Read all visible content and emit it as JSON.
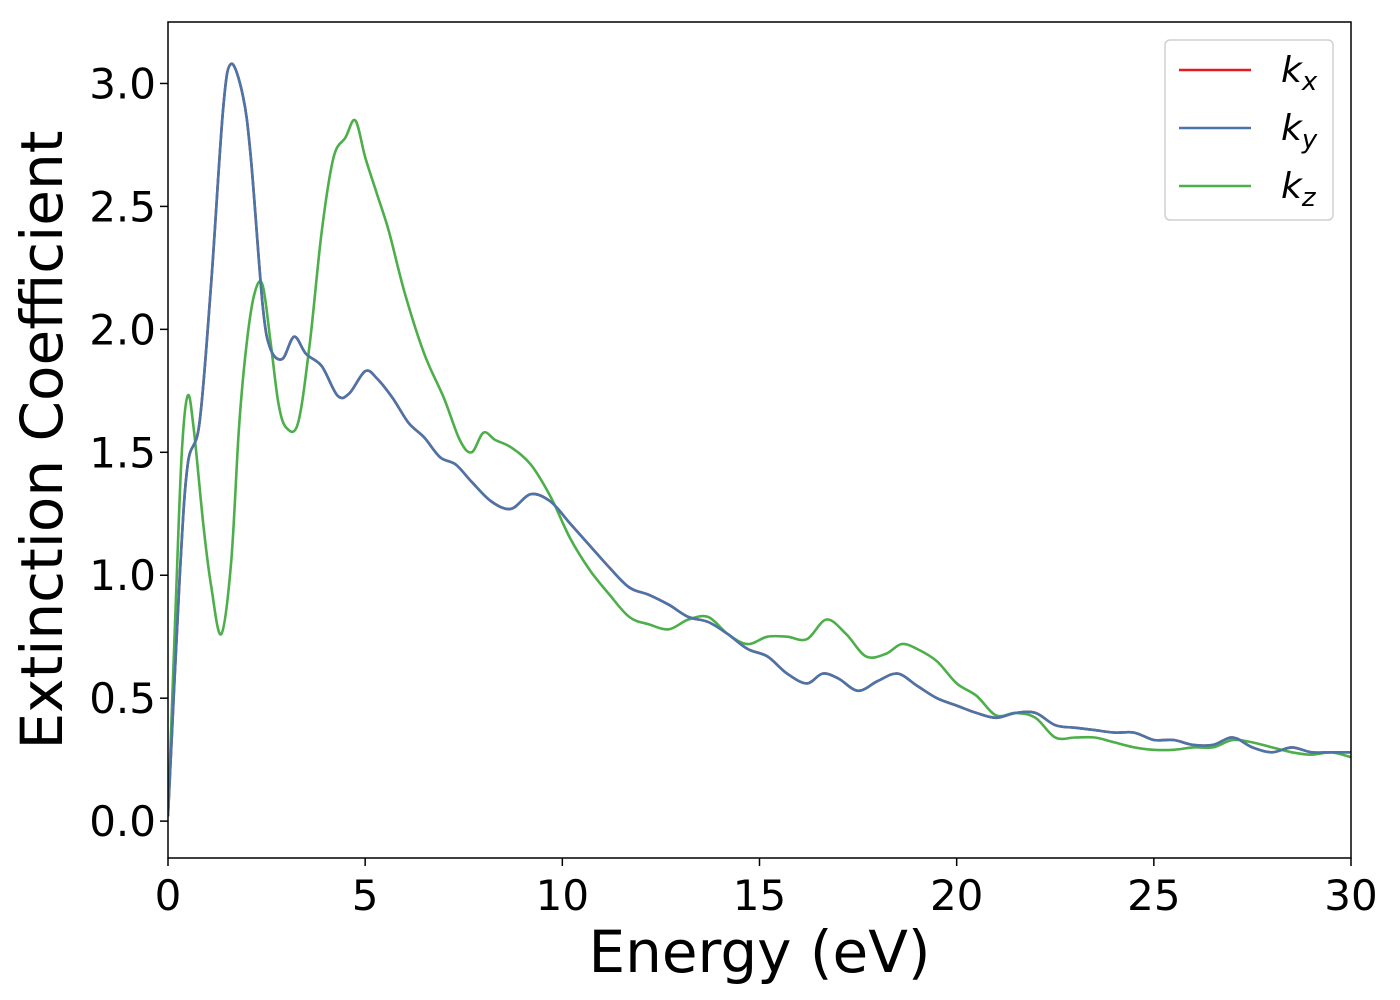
{
  "chart_data": {
    "type": "line",
    "title": "",
    "xlabel": "Energy (eV)",
    "ylabel": "Extinction Coefficient",
    "xlim": [
      0,
      30
    ],
    "ylim": [
      -0.15,
      3.25
    ],
    "xticks": [
      0,
      5,
      10,
      15,
      20,
      25,
      30
    ],
    "xtick_labels": [
      "0",
      "5",
      "10",
      "15",
      "20",
      "25",
      "30"
    ],
    "yticks": [
      0.0,
      0.5,
      1.0,
      1.5,
      2.0,
      2.5,
      3.0
    ],
    "ytick_labels": [
      "0.0",
      "0.5",
      "1.0",
      "1.5",
      "2.0",
      "2.5",
      "3.0"
    ],
    "grid": false,
    "legend_position": "top-right",
    "series": [
      {
        "name": "k_x",
        "label_main": "k",
        "label_sub": "x",
        "color": "#e41a1c",
        "x": [
          0,
          0.3,
          0.5,
          0.8,
          1.1,
          1.4,
          1.6,
          1.9,
          2.1,
          2.4,
          2.6,
          2.9,
          3.2,
          3.5,
          3.9,
          4.3,
          4.6,
          5.0,
          5.3,
          5.7,
          6.1,
          6.5,
          6.9,
          7.3,
          7.7,
          8.2,
          8.7,
          9.2,
          9.7,
          10.2,
          10.7,
          11.2,
          11.7,
          12.2,
          12.7,
          13.2,
          13.7,
          14.2,
          14.7,
          15.2,
          15.7,
          16.2,
          16.6,
          17.0,
          17.5,
          18.0,
          18.5,
          19.0,
          19.5,
          20.0,
          20.5,
          21.0,
          21.5,
          22.0,
          22.5,
          23.0,
          23.5,
          24.0,
          24.5,
          25.0,
          25.5,
          26.0,
          26.5,
          27.0,
          27.5,
          28.0,
          28.5,
          29.0,
          29.5,
          30.0
        ],
        "y": [
          0.02,
          1.0,
          1.45,
          1.62,
          2.2,
          2.9,
          3.08,
          2.95,
          2.7,
          2.1,
          1.92,
          1.88,
          1.97,
          1.9,
          1.85,
          1.73,
          1.74,
          1.83,
          1.8,
          1.72,
          1.62,
          1.56,
          1.48,
          1.45,
          1.38,
          1.3,
          1.27,
          1.33,
          1.3,
          1.21,
          1.12,
          1.03,
          0.95,
          0.92,
          0.88,
          0.83,
          0.81,
          0.76,
          0.7,
          0.67,
          0.6,
          0.56,
          0.6,
          0.58,
          0.53,
          0.57,
          0.6,
          0.55,
          0.5,
          0.47,
          0.44,
          0.42,
          0.44,
          0.44,
          0.39,
          0.38,
          0.37,
          0.36,
          0.36,
          0.33,
          0.33,
          0.31,
          0.31,
          0.34,
          0.3,
          0.28,
          0.3,
          0.28,
          0.28,
          0.28
        ]
      },
      {
        "name": "k_y",
        "label_main": "k",
        "label_sub": "y",
        "color": "#4a75a9",
        "x": [
          0,
          0.3,
          0.5,
          0.8,
          1.1,
          1.4,
          1.6,
          1.9,
          2.1,
          2.4,
          2.6,
          2.9,
          3.2,
          3.5,
          3.9,
          4.3,
          4.6,
          5.0,
          5.3,
          5.7,
          6.1,
          6.5,
          6.9,
          7.3,
          7.7,
          8.2,
          8.7,
          9.2,
          9.7,
          10.2,
          10.7,
          11.2,
          11.7,
          12.2,
          12.7,
          13.2,
          13.7,
          14.2,
          14.7,
          15.2,
          15.7,
          16.2,
          16.6,
          17.0,
          17.5,
          18.0,
          18.5,
          19.0,
          19.5,
          20.0,
          20.5,
          21.0,
          21.5,
          22.0,
          22.5,
          23.0,
          23.5,
          24.0,
          24.5,
          25.0,
          25.5,
          26.0,
          26.5,
          27.0,
          27.5,
          28.0,
          28.5,
          29.0,
          29.5,
          30.0
        ],
        "y": [
          0.02,
          1.0,
          1.45,
          1.62,
          2.2,
          2.9,
          3.08,
          2.95,
          2.7,
          2.1,
          1.92,
          1.88,
          1.97,
          1.9,
          1.85,
          1.73,
          1.74,
          1.83,
          1.8,
          1.72,
          1.62,
          1.56,
          1.48,
          1.45,
          1.38,
          1.3,
          1.27,
          1.33,
          1.3,
          1.21,
          1.12,
          1.03,
          0.95,
          0.92,
          0.88,
          0.83,
          0.81,
          0.76,
          0.7,
          0.67,
          0.6,
          0.56,
          0.6,
          0.58,
          0.53,
          0.57,
          0.6,
          0.55,
          0.5,
          0.47,
          0.44,
          0.42,
          0.44,
          0.44,
          0.39,
          0.38,
          0.37,
          0.36,
          0.36,
          0.33,
          0.33,
          0.31,
          0.31,
          0.34,
          0.3,
          0.28,
          0.3,
          0.28,
          0.28,
          0.28
        ]
      },
      {
        "name": "k_z",
        "label_main": "k",
        "label_sub": "z",
        "color": "#4daf4a",
        "x": [
          0,
          0.2,
          0.35,
          0.5,
          0.65,
          0.9,
          1.1,
          1.35,
          1.6,
          1.8,
          2.0,
          2.2,
          2.4,
          2.6,
          2.8,
          3.0,
          3.3,
          3.6,
          3.9,
          4.2,
          4.5,
          4.75,
          5.0,
          5.3,
          5.6,
          6.0,
          6.5,
          7.0,
          7.4,
          7.7,
          8.0,
          8.3,
          8.7,
          9.2,
          9.7,
          10.2,
          10.7,
          11.2,
          11.7,
          12.2,
          12.7,
          13.2,
          13.7,
          14.2,
          14.7,
          15.2,
          15.7,
          16.2,
          16.7,
          17.2,
          17.7,
          18.2,
          18.6,
          19.0,
          19.5,
          20.0,
          20.5,
          21.0,
          21.5,
          22.0,
          22.5,
          23.0,
          23.5,
          24.0,
          24.5,
          25.0,
          25.5,
          26.0,
          26.5,
          27.0,
          27.5,
          28.0,
          28.5,
          29.0,
          29.5,
          30.0
        ],
        "y": [
          0.02,
          0.9,
          1.5,
          1.73,
          1.6,
          1.2,
          0.95,
          0.76,
          1.05,
          1.6,
          1.95,
          2.15,
          2.18,
          1.95,
          1.7,
          1.6,
          1.62,
          1.95,
          2.4,
          2.7,
          2.78,
          2.85,
          2.7,
          2.55,
          2.4,
          2.15,
          1.9,
          1.72,
          1.55,
          1.5,
          1.58,
          1.55,
          1.52,
          1.45,
          1.32,
          1.15,
          1.02,
          0.92,
          0.83,
          0.8,
          0.78,
          0.82,
          0.83,
          0.76,
          0.72,
          0.75,
          0.75,
          0.74,
          0.82,
          0.76,
          0.67,
          0.68,
          0.72,
          0.7,
          0.65,
          0.56,
          0.51,
          0.43,
          0.44,
          0.42,
          0.34,
          0.34,
          0.34,
          0.32,
          0.3,
          0.29,
          0.29,
          0.3,
          0.3,
          0.33,
          0.32,
          0.3,
          0.28,
          0.27,
          0.28,
          0.26
        ]
      }
    ]
  }
}
